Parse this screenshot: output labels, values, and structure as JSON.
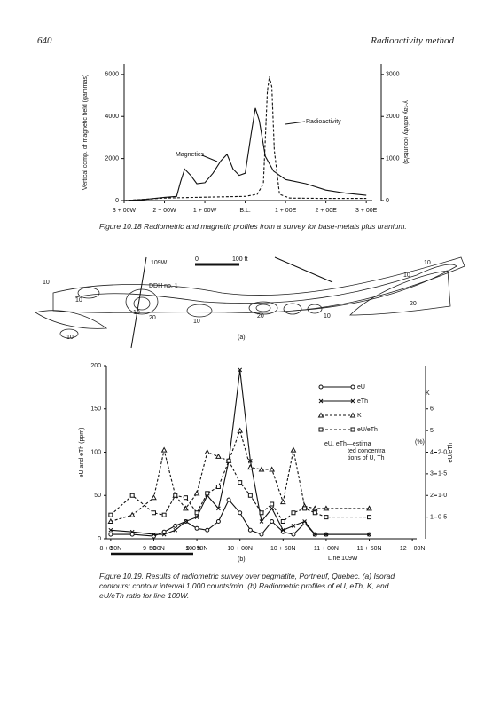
{
  "header": {
    "page": "640",
    "running_title": "Radioactivity method"
  },
  "chart_data": [
    {
      "type": "line",
      "caption": "Figure 10.18 Radiometric and magnetic profiles from a survey for base-metals plus uranium.",
      "ylabel": "Vertical comp. of magnetic field (gammas)",
      "y2label": "γ-ray activity (counts/s)",
      "xlim": [
        -300,
        315
      ],
      "xticks": [
        {
          "value": -300,
          "label": "3 + 00W"
        },
        {
          "value": -200,
          "label": "2 + 00W"
        },
        {
          "value": -100,
          "label": "1 + 00W"
        },
        {
          "value": 0,
          "label": "B.L."
        },
        {
          "value": 100,
          "label": "1 + 00E"
        },
        {
          "value": 200,
          "label": "2 + 00E"
        },
        {
          "value": 300,
          "label": "3 + 00E"
        }
      ],
      "ylim": [
        0,
        6500
      ],
      "yticks": [
        0,
        2000,
        4000,
        6000
      ],
      "y2lim": [
        0,
        3250
      ],
      "y2ticks": [
        0,
        1000,
        2000,
        3000
      ],
      "series": [
        {
          "name": "Magnetics",
          "color": "#111",
          "linestyle": "solid",
          "x": [
            -300,
            -250,
            -200,
            -170,
            -160,
            -150,
            -135,
            -120,
            -100,
            -80,
            -60,
            -45,
            -30,
            -15,
            0,
            15,
            25,
            35,
            50,
            70,
            100,
            150,
            200,
            250,
            300
          ],
          "values": [
            0,
            50,
            150,
            200,
            900,
            1500,
            1200,
            800,
            850,
            1300,
            1900,
            2200,
            1500,
            1200,
            1300,
            3200,
            4400,
            3800,
            2100,
            1400,
            1000,
            800,
            500,
            350,
            250
          ]
        },
        {
          "name": "Radioactivity",
          "color": "#111",
          "linestyle": "dashed",
          "axis": "y2",
          "x": [
            -300,
            -200,
            -100,
            0,
            30,
            45,
            55,
            60,
            66,
            72,
            85,
            110,
            200,
            300
          ],
          "values": [
            0,
            60,
            80,
            100,
            150,
            400,
            2600,
            2950,
            2700,
            1200,
            150,
            60,
            50,
            50
          ]
        }
      ]
    },
    {
      "type": "line",
      "caption": "Figure 10.19. Results of radiometric survey over pegmatite, Portneuf, Quebec. (a) Isorad contours; contour interval 1,000 counts/min. (b) Radiometric profiles of eU, eTh, K, and eU/eTh ratio for line 109W.",
      "ylabel": "eU and eTh (ppm)",
      "y2label": "K",
      "y2unit": "(%)",
      "y3label": "eU/eTh",
      "xlabel": "Line 109W",
      "panel": "(b)",
      "scale": [
        "0",
        "50",
        "100 ft"
      ],
      "note": "eU, eTh—estimated concentrations of U, Th",
      "xlim": [
        845,
        1205
      ],
      "xticks": [
        {
          "value": 850,
          "label": "8 + 50N"
        },
        {
          "value": 900,
          "label": "9 + 00N"
        },
        {
          "value": 950,
          "label": "9 + 50N"
        },
        {
          "value": 1000,
          "label": "10 + 00N"
        },
        {
          "value": 1050,
          "label": "10 + 50N"
        },
        {
          "value": 1100,
          "label": "11 + 00N"
        },
        {
          "value": 1150,
          "label": "11 + 50N"
        },
        {
          "value": 1200,
          "label": "12 + 00N"
        }
      ],
      "ylim": [
        0,
        200
      ],
      "yticks": [
        0,
        50,
        100,
        150,
        200
      ],
      "y2lim": [
        0,
        8
      ],
      "y2ticks": [
        1,
        2,
        3,
        4,
        5,
        6
      ],
      "y3lim": [
        0,
        4
      ],
      "y3ticks": [
        {
          "value": 0.5,
          "label": "0·5"
        },
        {
          "value": 1,
          "label": "1·0"
        },
        {
          "value": 1.5,
          "label": "1·5"
        },
        {
          "value": 2,
          "label": "2·0"
        }
      ],
      "series": [
        {
          "name": "eU",
          "color": "#111",
          "linestyle": "solid",
          "marker": "circle",
          "x": [
            850,
            875,
            900,
            912,
            925,
            937,
            950,
            962,
            975,
            987,
            1000,
            1012,
            1025,
            1037,
            1050,
            1062,
            1075,
            1087,
            1100,
            1150
          ],
          "values": [
            5,
            5,
            3,
            8,
            15,
            20,
            12,
            10,
            20,
            45,
            30,
            10,
            5,
            20,
            8,
            5,
            18,
            5,
            5,
            5
          ]
        },
        {
          "name": "eTh",
          "color": "#111",
          "linestyle": "solid",
          "marker": "x",
          "x": [
            850,
            875,
            900,
            912,
            925,
            937,
            950,
            962,
            975,
            987,
            1000,
            1012,
            1025,
            1037,
            1050,
            1062,
            1075,
            1087,
            1100,
            1150
          ],
          "values": [
            10,
            8,
            5,
            5,
            10,
            20,
            25,
            50,
            35,
            90,
            195,
            90,
            20,
            35,
            10,
            15,
            20,
            5,
            5,
            5
          ]
        },
        {
          "name": "K",
          "color": "#111",
          "linestyle": "dashed",
          "marker": "triangle",
          "axis": "y2",
          "x": [
            850,
            875,
            900,
            912,
            925,
            937,
            950,
            962,
            975,
            987,
            1000,
            1012,
            1025,
            1037,
            1050,
            1062,
            1075,
            1087,
            1100,
            1150
          ],
          "values": [
            0.8,
            1.1,
            1.9,
            4.1,
            2.0,
            1.4,
            2.1,
            4.0,
            3.8,
            3.6,
            5.0,
            3.3,
            3.2,
            3.2,
            1.7,
            4.1,
            1.5,
            1.4,
            1.4,
            1.4
          ]
        },
        {
          "name": "eU/eTh",
          "color": "#111",
          "linestyle": "dashed",
          "marker": "square",
          "axis": "y3",
          "x": [
            850,
            875,
            900,
            912,
            925,
            937,
            950,
            962,
            975,
            987,
            1000,
            1012,
            1025,
            1037,
            1050,
            1062,
            1075,
            1087,
            1100,
            1150
          ],
          "values": [
            0.55,
            1.0,
            0.6,
            0.55,
            1.0,
            0.95,
            0.6,
            1.05,
            1.2,
            1.8,
            1.3,
            1.0,
            0.6,
            0.8,
            0.4,
            0.6,
            0.7,
            0.6,
            0.5,
            0.5
          ]
        }
      ]
    }
  ],
  "map": {
    "line_label": "109W",
    "scale": [
      "0",
      "100 ft"
    ],
    "drill": "DDH no. 1",
    "contours": [
      "10",
      "10",
      "20",
      "10",
      "10",
      "20",
      "10",
      "10",
      "10",
      "20",
      "10"
    ],
    "panel": "(a)"
  }
}
